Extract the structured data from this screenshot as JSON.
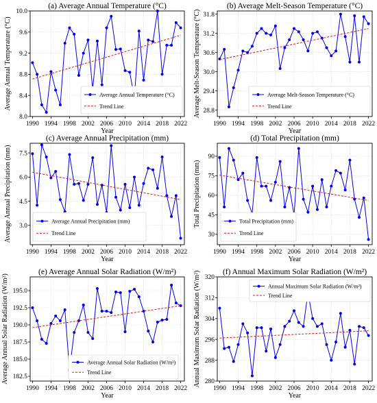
{
  "chart_data": [
    {
      "type": "line",
      "title": "(a) Average Annual Temperature (°C)",
      "xlabel": "Year",
      "ylabel": "Average Annual Temperature (°C)",
      "xlim": [
        1989.5,
        2022.8
      ],
      "ylim": [
        8.0,
        10.0
      ],
      "xticks": [
        1990,
        1994,
        1998,
        2002,
        2006,
        2010,
        2014,
        2018,
        2022
      ],
      "yticks": [
        8.0,
        8.4,
        8.8,
        9.2,
        9.6,
        10.0
      ],
      "ytick_labels": [
        "8.0",
        "8.4",
        "8.8",
        "9.2",
        "9.6",
        "10.0"
      ],
      "legend_position": "bottom-right",
      "x": [
        1990,
        1991,
        1992,
        1993,
        1994,
        1995,
        1996,
        1997,
        1998,
        1999,
        2000,
        2001,
        2002,
        2003,
        2004,
        2005,
        2006,
        2007,
        2008,
        2009,
        2010,
        2011,
        2012,
        2013,
        2014,
        2015,
        2016,
        2017,
        2018,
        2019,
        2020,
        2021,
        2022
      ],
      "series": [
        {
          "name": "Average Annual Temperature (°C)",
          "values": [
            9.02,
            8.8,
            8.22,
            8.08,
            8.85,
            8.5,
            8.22,
            9.39,
            9.68,
            9.56,
            8.78,
            9.2,
            9.45,
            8.52,
            9.43,
            8.6,
            9.68,
            9.9,
            9.27,
            9.28,
            8.87,
            8.84,
            8.35,
            9.62,
            8.69,
            9.45,
            9.42,
            10.0,
            8.8,
            9.35,
            9.35,
            9.78,
            9.68
          ],
          "color": "#0000ee",
          "style": "line-marker"
        },
        {
          "name": "Trend Line",
          "trend": [
            8.71,
            9.54
          ],
          "color": "#ee1111",
          "style": "dashed"
        }
      ]
    },
    {
      "type": "line",
      "title": "(b) Average Melt-Season Temperature (°C)",
      "xlabel": "Year",
      "ylabel": "Average Melt-Season Temperature (°C)",
      "xlim": [
        1989.5,
        2022.8
      ],
      "ylim": [
        28.6,
        31.9
      ],
      "xticks": [
        1990,
        1994,
        1998,
        2002,
        2006,
        2010,
        2014,
        2018,
        2022
      ],
      "yticks": [
        28.8,
        29.4,
        30.0,
        30.6,
        31.2,
        31.8
      ],
      "ytick_labels": [
        "28.8",
        "29.4",
        "30.0",
        "30.6",
        "31.2",
        "31.8"
      ],
      "legend_position": "bottom-right",
      "x": [
        1990,
        1991,
        1992,
        1993,
        1994,
        1995,
        1996,
        1997,
        1998,
        1999,
        2000,
        2001,
        2002,
        2003,
        2004,
        2005,
        2006,
        2007,
        2008,
        2009,
        2010,
        2011,
        2012,
        2013,
        2014,
        2015,
        2016,
        2017,
        2018,
        2019,
        2020,
        2021,
        2022
      ],
      "series": [
        {
          "name": "Average Melt-Season Temperature (°C)",
          "values": [
            30.4,
            30.7,
            28.9,
            29.5,
            30.05,
            30.65,
            30.6,
            30.8,
            31.2,
            31.35,
            31.2,
            31.15,
            31.43,
            30.1,
            30.75,
            31.0,
            31.35,
            31.25,
            31.0,
            30.65,
            31.2,
            31.25,
            31.05,
            30.75,
            30.5,
            30.65,
            31.8,
            31.1,
            30.3,
            31.75,
            30.3,
            31.72,
            31.5
          ],
          "color": "#0000ee",
          "style": "line-marker"
        },
        {
          "name": "Trend Line",
          "trend": [
            30.38,
            31.35
          ],
          "color": "#ee1111",
          "style": "dashed"
        }
      ]
    },
    {
      "type": "line",
      "title": "(c) Average Annual Precipitation (mm)",
      "xlabel": "Year",
      "ylabel": "Average Annual Precipitation (mm)",
      "xlim": [
        1989.5,
        2022.8
      ],
      "ylim": [
        1.8,
        8.1
      ],
      "xticks": [
        1990,
        1994,
        1998,
        2002,
        2006,
        2010,
        2014,
        2018,
        2022
      ],
      "yticks": [
        3.0,
        4.5,
        6.0,
        7.5
      ],
      "ytick_labels": [
        "3.0",
        "4.5",
        "6.0",
        "7.5"
      ],
      "legend_position": "bottom-left",
      "x": [
        1990,
        1991,
        1992,
        1993,
        1994,
        1995,
        1996,
        1997,
        1998,
        1999,
        2000,
        2001,
        2002,
        2003,
        2004,
        2005,
        2006,
        2007,
        2008,
        2009,
        2010,
        2011,
        2012,
        2013,
        2014,
        2015,
        2016,
        2017,
        2018,
        2019,
        2020,
        2021,
        2022
      ],
      "series": [
        {
          "name": "Average Annual Precipitation (mm)",
          "values": [
            7.45,
            4.25,
            8.0,
            7.25,
            5.95,
            6.35,
            4.6,
            3.85,
            7.4,
            5.55,
            5.6,
            4.55,
            5.55,
            7.2,
            4.3,
            5.5,
            3.8,
            7.95,
            4.75,
            3.95,
            5.55,
            4.1,
            6.0,
            4.25,
            5.6,
            6.55,
            6.45,
            5.3,
            7.25,
            4.85,
            3.55,
            4.85,
            2.2
          ],
          "color": "#0000ee",
          "style": "line-marker"
        },
        {
          "name": "Trend Line",
          "trend": [
            6.3,
            4.6
          ],
          "color": "#ee1111",
          "style": "dashed"
        }
      ]
    },
    {
      "type": "line",
      "title": "(d) Total Precipitation (mm)",
      "xlabel": "Year",
      "ylabel": "Total Precipitation (mm)",
      "xlim": [
        1989.5,
        2022.8
      ],
      "ylim": [
        22,
        100
      ],
      "xticks": [
        1990,
        1994,
        1998,
        2002,
        2006,
        2010,
        2014,
        2018,
        2022
      ],
      "yticks": [
        30,
        45,
        60,
        75,
        90
      ],
      "ytick_labels": [
        "30",
        "45",
        "60",
        "75",
        "90"
      ],
      "legend_position": "bottom-left",
      "x": [
        1990,
        1991,
        1992,
        1993,
        1994,
        1995,
        1996,
        1997,
        1998,
        1999,
        2000,
        2001,
        2002,
        2003,
        2004,
        2005,
        2006,
        2007,
        2008,
        2009,
        2010,
        2011,
        2012,
        2013,
        2014,
        2015,
        2016,
        2017,
        2018,
        2019,
        2020,
        2021,
        2022
      ],
      "series": [
        {
          "name": "Total Precipitation (mm)",
          "values": [
            89,
            51,
            96,
            87,
            72,
            77,
            56,
            46,
            89,
            67,
            67,
            56,
            70,
            86,
            51,
            66,
            45,
            96,
            57,
            47,
            67,
            49,
            72,
            51,
            67,
            79,
            77,
            64,
            87,
            57,
            43,
            58,
            26
          ],
          "color": "#0000ee",
          "style": "line-marker"
        },
        {
          "name": "Trend Line",
          "trend": [
            75.5,
            56
          ],
          "color": "#ee1111",
          "style": "dashed"
        }
      ]
    },
    {
      "type": "line",
      "title": "(e) Average Annual Solar Radiation (W/m²)",
      "xlabel": "Year",
      "ylabel": "Average Annual Solar Radiation (W/m²)",
      "xlim": [
        1989.5,
        2022.8
      ],
      "ylim": [
        181.8,
        197.0
      ],
      "xticks": [
        1990,
        1994,
        1998,
        2002,
        2006,
        2010,
        2014,
        2018,
        2022
      ],
      "yticks": [
        182.5,
        185.0,
        187.5,
        190.0,
        192.5,
        195.0
      ],
      "ytick_labels": [
        "182.5",
        "185.0",
        "187.5",
        "190.0",
        "192.5",
        "195.0"
      ],
      "legend_position": "bottom-center",
      "x": [
        1990,
        1991,
        1992,
        1993,
        1994,
        1995,
        1996,
        1997,
        1998,
        1999,
        2000,
        2001,
        2002,
        2003,
        2004,
        2005,
        2006,
        2007,
        2008,
        2009,
        2010,
        2011,
        2012,
        2013,
        2014,
        2015,
        2016,
        2017,
        2018,
        2019,
        2020,
        2021,
        2022
      ],
      "series": [
        {
          "name": "Average Annual Solar Radiation (W/m²)",
          "values": [
            192.5,
            190.6,
            187.9,
            187.3,
            190.2,
            191.3,
            190.6,
            192.2,
            183.4,
            188.9,
            190.6,
            192.9,
            188.9,
            188.0,
            195.3,
            192.0,
            192.0,
            191.8,
            194.8,
            194.7,
            189.0,
            194.9,
            195.2,
            194.1,
            192.0,
            189.1,
            187.5,
            190.4,
            190.7,
            190.8,
            195.8,
            193.2,
            192.8
          ],
          "color": "#0000ee",
          "style": "line-marker"
        },
        {
          "name": "Trend Line",
          "trend": [
            189.6,
            192.8
          ],
          "color": "#ee1111",
          "style": "dashed"
        }
      ]
    },
    {
      "type": "line",
      "title": "(f) Annual Maximum Solar Radiation (W/m²)",
      "xlabel": "Year",
      "ylabel": "Annual Maximum Solar Radiation (W/m²)",
      "xlim": [
        1989.5,
        2022.8
      ],
      "ylim": [
        280,
        320
      ],
      "xticks": [
        1990,
        1994,
        1998,
        2002,
        2006,
        2010,
        2014,
        2018,
        2022
      ],
      "yticks": [
        280,
        288,
        296,
        304,
        312,
        320
      ],
      "ytick_labels": [
        "280",
        "288",
        "296",
        "304",
        "312",
        "320"
      ],
      "legend_position": "top-right",
      "x": [
        1990,
        1991,
        1992,
        1993,
        1994,
        1995,
        1996,
        1997,
        1998,
        1999,
        2000,
        2001,
        2002,
        2003,
        2004,
        2005,
        2006,
        2007,
        2008,
        2009,
        2010,
        2011,
        2012,
        2013,
        2014,
        2015,
        2016,
        2017,
        2018,
        2019,
        2020,
        2021,
        2022
      ],
      "series": [
        {
          "name": "Annual Maximum Solar Radiation (W/m²)",
          "values": [
            308,
            292.5,
            293,
            287.5,
            294,
            302,
            298.5,
            282,
            300.5,
            300.5,
            291.5,
            300,
            289,
            294,
            301,
            303,
            307,
            302.5,
            301,
            314,
            304,
            301,
            302,
            294,
            288,
            295,
            306,
            293,
            299.5,
            286.5,
            301,
            300.5,
            297.5
          ],
          "color": "#0000ee",
          "style": "line-marker"
        },
        {
          "name": "Trend Line",
          "trend": [
            296.5,
            299.3
          ],
          "color": "#ee1111",
          "style": "dashed"
        }
      ]
    }
  ]
}
